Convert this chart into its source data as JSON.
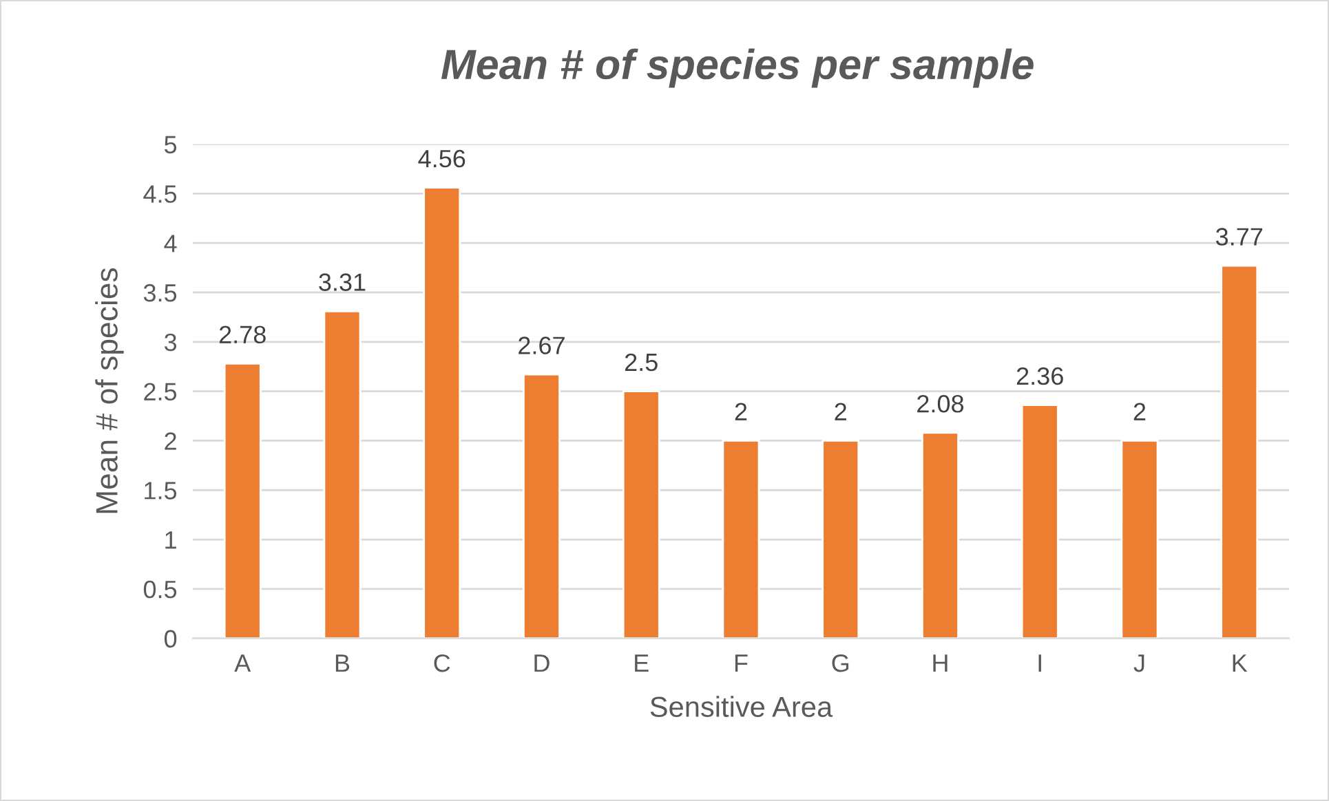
{
  "chart_data": {
    "type": "bar",
    "title": "Mean # of species per sample",
    "xlabel": "Sensitive Area",
    "ylabel": "Mean # of species",
    "categories": [
      "A",
      "B",
      "C",
      "D",
      "E",
      "F",
      "G",
      "H",
      "I",
      "J",
      "K"
    ],
    "values": [
      2.78,
      3.31,
      4.56,
      2.67,
      2.5,
      2,
      2,
      2.08,
      2.36,
      2,
      3.77
    ],
    "color": "#ed7d31",
    "ylim": [
      0,
      5
    ],
    "yticks": [
      0,
      0.5,
      1,
      1.5,
      2,
      2.5,
      3,
      3.5,
      4,
      4.5,
      5
    ],
    "grid": "y",
    "data_labels": true,
    "legend": false
  }
}
